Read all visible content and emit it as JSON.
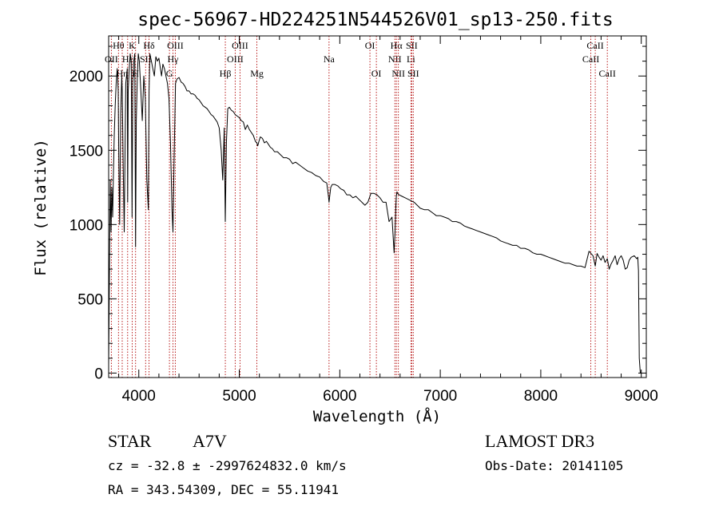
{
  "chart_data": {
    "type": "line",
    "title": "spec-56967-HD224251N544526V01_sp13-250.fits",
    "xlabel": "Wavelength (Å)",
    "ylabel": "Flux (relative)",
    "xlim": [
      3700,
      9050
    ],
    "ylim": [
      -30,
      2270
    ],
    "x_ticks": [
      4000,
      5000,
      6000,
      7000,
      8000,
      9000
    ],
    "x_tick_labels": [
      "4000",
      "5000",
      "6000",
      "7000",
      "8000",
      "9000"
    ],
    "y_ticks": [
      0,
      500,
      1000,
      1500,
      2000
    ],
    "y_tick_labels": [
      "0",
      "500",
      "1000",
      "1500",
      "2000"
    ],
    "series": [
      {
        "name": "spectrum",
        "x": [
          3700,
          3708,
          3716,
          3724,
          3732,
          3740,
          3748,
          3756,
          3765,
          3775,
          3785,
          3795,
          3800,
          3810,
          3820,
          3830,
          3835,
          3845,
          3855,
          3870,
          3885,
          3889,
          3895,
          3905,
          3915,
          3925,
          3933,
          3940,
          3950,
          3960,
          3968,
          3975,
          3985,
          3995,
          4005,
          4020,
          4035,
          4050,
          4065,
          4080,
          4095,
          4102,
          4110,
          4125,
          4140,
          4155,
          4170,
          4185,
          4200,
          4215,
          4226,
          4240,
          4255,
          4270,
          4285,
          4300,
          4315,
          4330,
          4340,
          4350,
          4365,
          4380,
          4400,
          4420,
          4440,
          4460,
          4480,
          4500,
          4520,
          4540,
          4560,
          4580,
          4600,
          4620,
          4640,
          4660,
          4680,
          4700,
          4720,
          4740,
          4760,
          4780,
          4800,
          4820,
          4835,
          4850,
          4861,
          4872,
          4885,
          4900,
          4920,
          4940,
          4960,
          4980,
          5000,
          5020,
          5040,
          5060,
          5080,
          5100,
          5120,
          5140,
          5160,
          5175,
          5183,
          5195,
          5210,
          5230,
          5250,
          5270,
          5290,
          5310,
          5330,
          5350,
          5380,
          5410,
          5440,
          5470,
          5500,
          5530,
          5560,
          5600,
          5640,
          5680,
          5720,
          5760,
          5800,
          5840,
          5870,
          5885,
          5893,
          5900,
          5910,
          5925,
          5950,
          5980,
          6010,
          6040,
          6070,
          6100,
          6130,
          6160,
          6190,
          6220,
          6250,
          6280,
          6310,
          6340,
          6370,
          6400,
          6430,
          6460,
          6490,
          6520,
          6540,
          6550,
          6557,
          6563,
          6569,
          6575,
          6590,
          6620,
          6650,
          6680,
          6710,
          6740,
          6770,
          6800,
          6840,
          6880,
          6920,
          6960,
          7000,
          7040,
          7080,
          7120,
          7160,
          7200,
          7240,
          7280,
          7320,
          7360,
          7400,
          7440,
          7480,
          7520,
          7560,
          7600,
          7640,
          7680,
          7720,
          7760,
          7800,
          7840,
          7880,
          7920,
          7960,
          8000,
          8040,
          8080,
          8120,
          8160,
          8200,
          8240,
          8280,
          8320,
          8360,
          8400,
          8440,
          8480,
          8520,
          8542,
          8560,
          8580,
          8600,
          8620,
          8640,
          8662,
          8680,
          8700,
          8720,
          8740,
          8760,
          8780,
          8800,
          8820,
          8840,
          8860,
          8880,
          8900,
          8930,
          8955,
          8965,
          8972,
          8980,
          8990,
          9000
        ],
        "values": [
          60,
          700,
          1300,
          950,
          1250,
          1050,
          1350,
          1600,
          1800,
          1950,
          2050,
          1900,
          1500,
          1000,
          1750,
          2000,
          1900,
          1400,
          950,
          1950,
          2050,
          1150,
          1900,
          2050,
          2150,
          2100,
          1050,
          1950,
          2100,
          2150,
          850,
          1700,
          2000,
          2150,
          2100,
          1900,
          1700,
          2000,
          1850,
          1300,
          1100,
          1900,
          2150,
          2100,
          2050,
          2000,
          2130,
          2100,
          2120,
          2050,
          2000,
          2080,
          2050,
          2000,
          1950,
          1850,
          1550,
          1100,
          950,
          1400,
          1950,
          1980,
          1990,
          1960,
          1950,
          1930,
          1900,
          1900,
          1880,
          1880,
          1870,
          1850,
          1840,
          1820,
          1800,
          1790,
          1780,
          1760,
          1740,
          1730,
          1710,
          1690,
          1650,
          1500,
          1300,
          1650,
          1020,
          1550,
          1780,
          1790,
          1770,
          1760,
          1740,
          1730,
          1720,
          1700,
          1690,
          1640,
          1670,
          1640,
          1620,
          1600,
          1560,
          1550,
          1530,
          1560,
          1590,
          1580,
          1550,
          1560,
          1540,
          1520,
          1510,
          1490,
          1490,
          1470,
          1450,
          1450,
          1440,
          1410,
          1420,
          1400,
          1380,
          1360,
          1350,
          1330,
          1320,
          1290,
          1280,
          1200,
          1150,
          1190,
          1250,
          1270,
          1270,
          1260,
          1240,
          1230,
          1200,
          1200,
          1180,
          1190,
          1170,
          1150,
          1130,
          1150,
          1210,
          1210,
          1200,
          1180,
          1150,
          1150,
          1020,
          1050,
          810,
          950,
          1110,
          1190,
          1220,
          1210,
          1200,
          1190,
          1180,
          1170,
          1160,
          1150,
          1130,
          1110,
          1100,
          1100,
          1080,
          1060,
          1060,
          1050,
          1040,
          1020,
          1020,
          1010,
          990,
          980,
          970,
          960,
          950,
          940,
          930,
          920,
          910,
          890,
          880,
          870,
          860,
          860,
          840,
          840,
          830,
          810,
          800,
          800,
          790,
          780,
          770,
          760,
          750,
          740,
          740,
          730,
          720,
          720,
          710,
          820,
          790,
          720,
          805,
          780,
          760,
          790,
          745,
          770,
          700,
          735,
          760,
          790,
          730,
          770,
          790,
          760,
          700,
          710,
          760,
          780,
          790,
          770,
          780,
          690,
          100,
          0,
          0
        ]
      }
    ],
    "spectral_lines": [
      {
        "label": "Hθ",
        "wl": 3798,
        "row": 0
      },
      {
        "label": "OII",
        "wl": 3727,
        "row": 1
      },
      {
        "label": "Hη",
        "wl": 3835,
        "row": 2
      },
      {
        "label": "Hε",
        "wl": 3889,
        "row": 1
      },
      {
        "label": "K",
        "wl": 3934,
        "row": 0
      },
      {
        "label": "H",
        "wl": 3968,
        "row": 2
      },
      {
        "label": "SII",
        "wl": 4068,
        "row": 1
      },
      {
        "label": "Hδ",
        "wl": 4102,
        "row": 0
      },
      {
        "label": "G",
        "wl": 4305,
        "row": 2
      },
      {
        "label": "Hγ",
        "wl": 4340,
        "row": 1
      },
      {
        "label": "OIII",
        "wl": 4363,
        "row": 0
      },
      {
        "label": "Hβ",
        "wl": 4861,
        "row": 2
      },
      {
        "label": "OIII",
        "wl": 4959,
        "row": 1
      },
      {
        "label": "OIII",
        "wl": 5007,
        "row": 0
      },
      {
        "label": "Mg",
        "wl": 5175,
        "row": 2
      },
      {
        "label": "Na",
        "wl": 5893,
        "row": 1
      },
      {
        "label": "OI",
        "wl": 6300,
        "row": 0
      },
      {
        "label": "OI",
        "wl": 6364,
        "row": 2
      },
      {
        "label": "NII",
        "wl": 6548,
        "row": 1
      },
      {
        "label": "Hα",
        "wl": 6563,
        "row": 0
      },
      {
        "label": "NII",
        "wl": 6583,
        "row": 2
      },
      {
        "label": "Li",
        "wl": 6708,
        "row": 1
      },
      {
        "label": "SII",
        "wl": 6716,
        "row": 0
      },
      {
        "label": "SII",
        "wl": 6731,
        "row": 2
      },
      {
        "label": "CaII",
        "wl": 8498,
        "row": 1
      },
      {
        "label": "CaII",
        "wl": 8542,
        "row": 0
      },
      {
        "label": "CaII",
        "wl": 8662,
        "row": 2
      }
    ]
  },
  "colors": {
    "axis": "#000000",
    "spectrum": "#000000",
    "line_marker": "#b00000"
  },
  "info": {
    "object_type": "STAR",
    "spectral_class": "A7V",
    "survey": "LAMOST DR3",
    "redshift_line": "cz = -32.8 ± -2997624832.0 km/s",
    "obs_date": "Obs-Date: 20141105",
    "coords": "RA = 343.54309, DEC =  55.11941"
  }
}
